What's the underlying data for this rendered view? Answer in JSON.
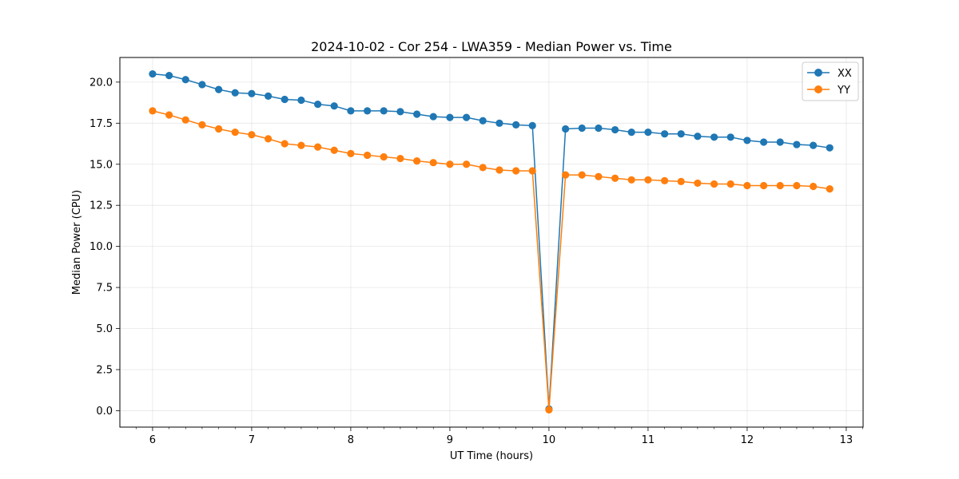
{
  "chart_data": {
    "type": "line",
    "title": "2024-10-02 - Cor 254 - LWA359 - Median Power vs. Time",
    "xlabel": "UT Time (hours)",
    "ylabel": "Median Power (CPU)",
    "xlim": [
      5.67,
      13.17
    ],
    "ylim": [
      -1.0,
      21.5
    ],
    "xticks": [
      6,
      7,
      8,
      9,
      10,
      11,
      12,
      13
    ],
    "xtick_labels": [
      "6",
      "7",
      "8",
      "9",
      "10",
      "11",
      "12",
      "13"
    ],
    "yticks": [
      0.0,
      2.5,
      5.0,
      7.5,
      10.0,
      12.5,
      15.0,
      17.5,
      20.0
    ],
    "ytick_labels": [
      "0.0",
      "2.5",
      "5.0",
      "7.5",
      "10.0",
      "12.5",
      "15.0",
      "17.5",
      "20.0"
    ],
    "grid": true,
    "legend_position": "top-right",
    "x": [
      6.0,
      6.167,
      6.333,
      6.5,
      6.667,
      6.833,
      7.0,
      7.167,
      7.333,
      7.5,
      7.667,
      7.833,
      8.0,
      8.167,
      8.333,
      8.5,
      8.667,
      8.833,
      9.0,
      9.167,
      9.333,
      9.5,
      9.667,
      9.833,
      10.0,
      10.167,
      10.333,
      10.5,
      10.667,
      10.833,
      11.0,
      11.167,
      11.333,
      11.5,
      11.667,
      11.833,
      12.0,
      12.167,
      12.333,
      12.5,
      12.667,
      12.833
    ],
    "series": [
      {
        "name": "XX",
        "color": "#1f77b4",
        "values": [
          20.5,
          20.4,
          20.15,
          19.85,
          19.55,
          19.35,
          19.3,
          19.15,
          18.95,
          18.9,
          18.65,
          18.55,
          18.25,
          18.25,
          18.25,
          18.2,
          18.05,
          17.9,
          17.85,
          17.85,
          17.65,
          17.5,
          17.4,
          17.35,
          0.1,
          17.15,
          17.2,
          17.2,
          17.1,
          16.95,
          16.95,
          16.85,
          16.85,
          16.7,
          16.65,
          16.65,
          16.45,
          16.35,
          16.35,
          16.2,
          16.15,
          16.0
        ]
      },
      {
        "name": "YY",
        "color": "#ff7f0e",
        "values": [
          18.25,
          18.0,
          17.7,
          17.4,
          17.15,
          16.95,
          16.8,
          16.55,
          16.25,
          16.15,
          16.05,
          15.85,
          15.65,
          15.55,
          15.45,
          15.35,
          15.2,
          15.1,
          15.0,
          15.0,
          14.8,
          14.65,
          14.6,
          14.6,
          0.05,
          14.35,
          14.35,
          14.25,
          14.15,
          14.05,
          14.05,
          14.0,
          13.95,
          13.85,
          13.8,
          13.8,
          13.7,
          13.7,
          13.7,
          13.7,
          13.65,
          13.5
        ]
      }
    ]
  }
}
